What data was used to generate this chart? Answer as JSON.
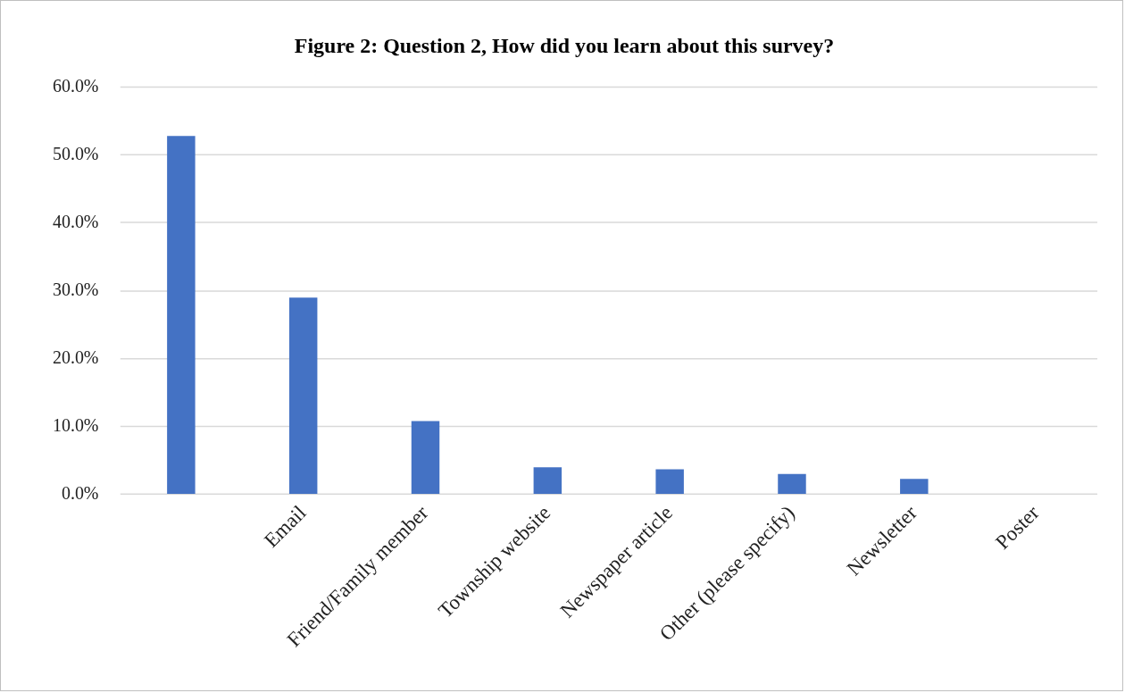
{
  "chart_data": {
    "type": "bar",
    "title": "Figure 2: Question 2, How did you learn about this survey?",
    "categories": [
      null,
      "Email",
      "Friend/Family member",
      "Township website",
      "Newspaper article",
      "Other (please specify)",
      "Newsletter",
      "Poster"
    ],
    "values": [
      52.8,
      29.0,
      10.8,
      4.0,
      3.7,
      3.0,
      2.3,
      0
    ],
    "color": "#4472c4",
    "ylim": [
      0,
      60
    ],
    "yticks": [
      {
        "value": 0,
        "label": "0.0%"
      },
      {
        "value": 10,
        "label": "10.0%"
      },
      {
        "value": 20,
        "label": "20.0%"
      },
      {
        "value": 30,
        "label": "30.0%"
      },
      {
        "value": 40,
        "label": "40.0%"
      },
      {
        "value": 50,
        "label": "50.0%"
      },
      {
        "value": 60,
        "label": "60.0%"
      }
    ],
    "grid": "y"
  }
}
